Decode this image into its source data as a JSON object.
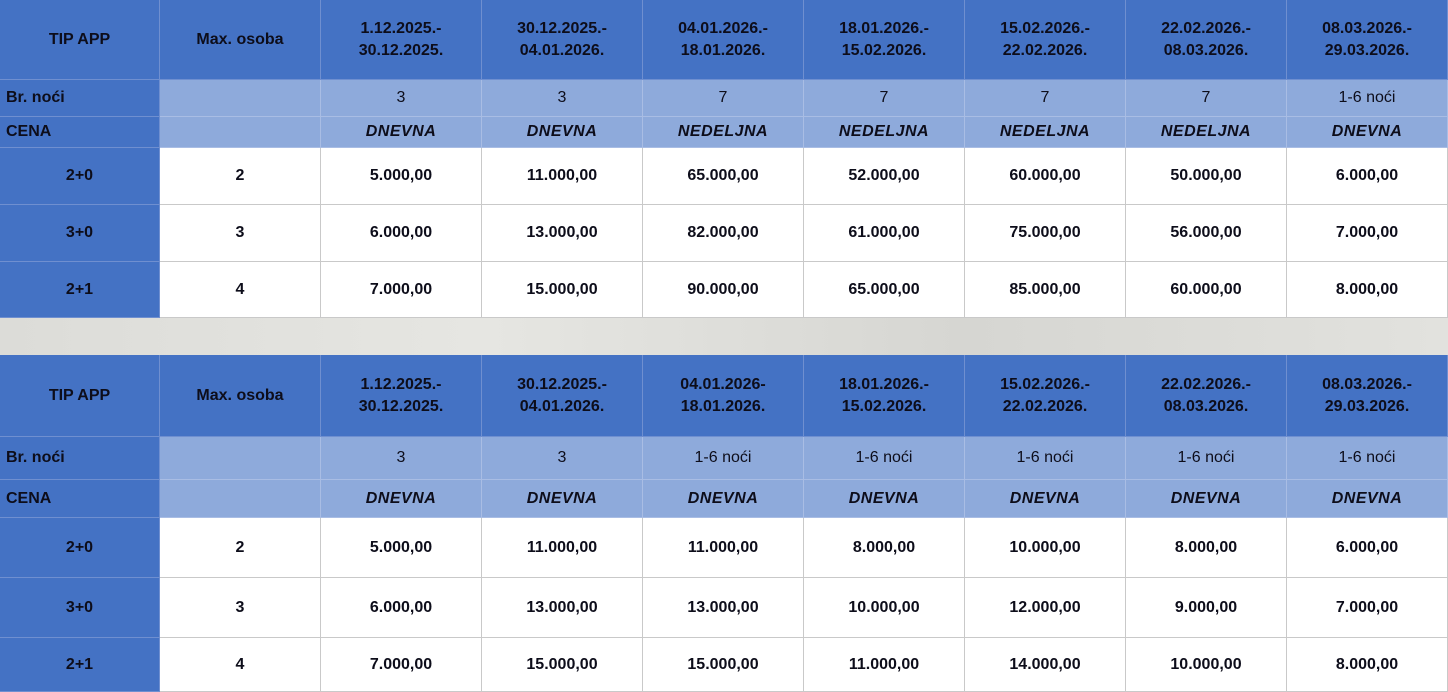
{
  "tables": [
    {
      "header": {
        "type": "TIP APP",
        "max": "Max. osoba",
        "periods": [
          [
            "1.12.2025.-",
            "30.12.2025."
          ],
          [
            "30.12.2025.-",
            "04.01.2026."
          ],
          [
            "04.01.2026.-",
            "18.01.2026."
          ],
          [
            "18.01.2026.-",
            "15.02.2026."
          ],
          [
            "15.02.2026.-",
            "22.02.2026."
          ],
          [
            "22.02.2026.-",
            "08.03.2026."
          ],
          [
            "08.03.2026.-",
            "29.03.2026."
          ]
        ]
      },
      "nights": {
        "label": "Br. noći",
        "values": [
          "3",
          "3",
          "7",
          "7",
          "7",
          "7",
          "1-6 noći"
        ]
      },
      "price_type": {
        "label": "CENA",
        "values": [
          "DNEVNA",
          "DNEVNA",
          "NEDELJNA",
          "NEDELJNA",
          "NEDELJNA",
          "NEDELJNA",
          "DNEVNA"
        ]
      },
      "rows": [
        {
          "type": "2+0",
          "max": "2",
          "prices": [
            "5.000,00",
            "11.000,00",
            "65.000,00",
            "52.000,00",
            "60.000,00",
            "50.000,00",
            "6.000,00"
          ]
        },
        {
          "type": "3+0",
          "max": "3",
          "prices": [
            "6.000,00",
            "13.000,00",
            "82.000,00",
            "61.000,00",
            "75.000,00",
            "56.000,00",
            "7.000,00"
          ]
        },
        {
          "type": "2+1",
          "max": "4",
          "prices": [
            "7.000,00",
            "15.000,00",
            "90.000,00",
            "65.000,00",
            "85.000,00",
            "60.000,00",
            "8.000,00"
          ]
        }
      ]
    },
    {
      "header": {
        "type": "TIP APP",
        "max": "Max. osoba",
        "periods": [
          [
            "1.12.2025.-",
            "30.12.2025."
          ],
          [
            "30.12.2025.-",
            "04.01.2026."
          ],
          [
            "04.01.2026-",
            "18.01.2026."
          ],
          [
            "18.01.2026.-",
            "15.02.2026."
          ],
          [
            "15.02.2026.-",
            "22.02.2026."
          ],
          [
            "22.02.2026.-",
            "08.03.2026."
          ],
          [
            "08.03.2026.-",
            "29.03.2026."
          ]
        ]
      },
      "nights": {
        "label": "Br. noći",
        "values": [
          "3",
          "3",
          "1-6 noći",
          "1-6 noći",
          "1-6 noći",
          "1-6 noći",
          "1-6 noći"
        ]
      },
      "price_type": {
        "label": "CENA",
        "values": [
          "DNEVNA",
          "DNEVNA",
          "DNEVNA",
          "DNEVNA",
          "DNEVNA",
          "DNEVNA",
          "DNEVNA"
        ]
      },
      "rows": [
        {
          "type": "2+0",
          "max": "2",
          "prices": [
            "5.000,00",
            "11.000,00",
            "11.000,00",
            "8.000,00",
            "10.000,00",
            "8.000,00",
            "6.000,00"
          ]
        },
        {
          "type": "3+0",
          "max": "3",
          "prices": [
            "6.000,00",
            "13.000,00",
            "13.000,00",
            "10.000,00",
            "12.000,00",
            "9.000,00",
            "7.000,00"
          ]
        },
        {
          "type": "2+1",
          "max": "4",
          "prices": [
            "7.000,00",
            "15.000,00",
            "15.000,00",
            "11.000,00",
            "14.000,00",
            "10.000,00",
            "8.000,00"
          ]
        }
      ]
    }
  ]
}
